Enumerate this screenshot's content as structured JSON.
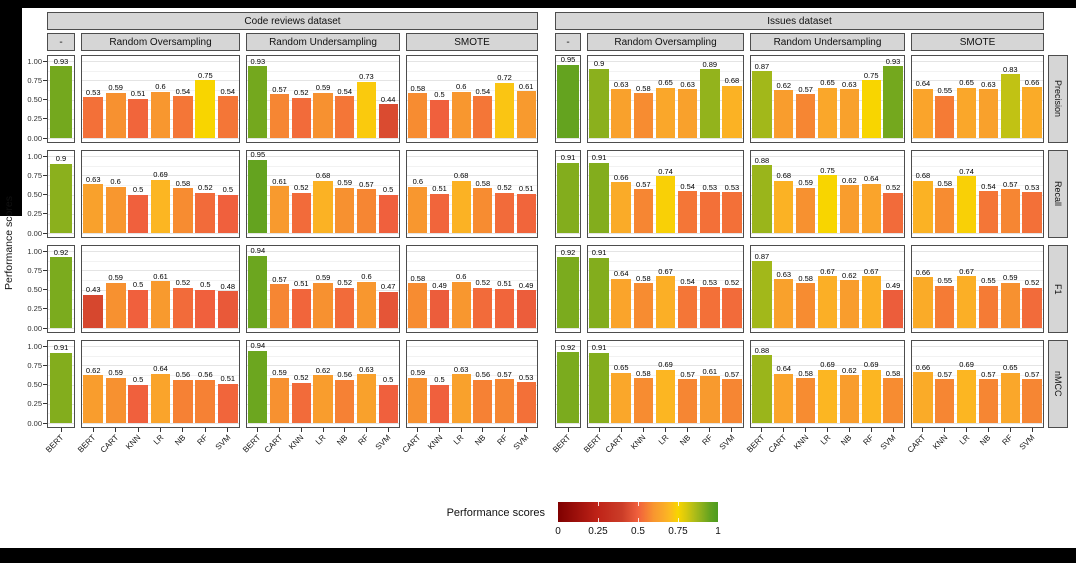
{
  "axes": {
    "y_label": "Performance scores",
    "y_ticks": [
      "1.00",
      "0.75",
      "0.50",
      "0.25",
      "0.00"
    ]
  },
  "legend": {
    "title": "Performance scores",
    "tick_labels": [
      "0",
      "0.25",
      "0.5",
      "0.75",
      "1"
    ]
  },
  "chart_data": {
    "type": "bar",
    "title": "",
    "ylabel": "Performance scores",
    "ylim": [
      0,
      1
    ],
    "y_tick_values": [
      0,
      0.25,
      0.5,
      0.75,
      1
    ],
    "grid": "on",
    "legend_position": "bottom",
    "metrics": [
      "Precision",
      "Recall",
      "F1",
      "nMCC"
    ],
    "color_scale": {
      "stops": [
        [
          0.0,
          "#7f0000"
        ],
        [
          0.25,
          "#bf2318"
        ],
        [
          0.4,
          "#cb3d28"
        ],
        [
          0.5,
          "#f0603d"
        ],
        [
          0.55,
          "#f57b35"
        ],
        [
          0.6,
          "#f8972f"
        ],
        [
          0.65,
          "#faa72a"
        ],
        [
          0.7,
          "#fcba20"
        ],
        [
          0.75,
          "#f8d500"
        ],
        [
          0.8,
          "#d8c90d"
        ],
        [
          0.85,
          "#b1bd18"
        ],
        [
          0.9,
          "#8bb01d"
        ],
        [
          0.95,
          "#64a31f"
        ],
        [
          1.0,
          "#4c9c1f"
        ]
      ]
    },
    "datasets": [
      {
        "name": "Code reviews dataset",
        "strategies": [
          {
            "name": "-",
            "models": [
              "BERT"
            ],
            "values": {
              "Precision": [
                0.93
              ],
              "Recall": [
                0.9
              ],
              "F1": [
                0.92
              ],
              "nMCC": [
                0.91
              ]
            }
          },
          {
            "name": "Random Oversampling",
            "models": [
              "BERT",
              "CART",
              "KNN",
              "LR",
              "NB",
              "RF",
              "SVM"
            ],
            "values": {
              "Precision": [
                0.53,
                0.59,
                0.51,
                0.6,
                0.54,
                0.75,
                0.54
              ],
              "Recall": [
                0.63,
                0.6,
                0.5,
                0.69,
                0.58,
                0.52,
                0.5
              ],
              "F1": [
                0.43,
                0.59,
                0.5,
                0.61,
                0.52,
                0.5,
                0.48
              ],
              "nMCC": [
                0.62,
                0.59,
                0.5,
                0.64,
                0.56,
                0.56,
                0.51
              ]
            }
          },
          {
            "name": "Random Undersampling",
            "models": [
              "BERT",
              "CART",
              "KNN",
              "LR",
              "NB",
              "RF",
              "SVM"
            ],
            "values": {
              "Precision": [
                0.93,
                0.57,
                0.52,
                0.59,
                0.54,
                0.73,
                0.44
              ],
              "Recall": [
                0.95,
                0.61,
                0.52,
                0.68,
                0.59,
                0.57,
                0.5
              ],
              "F1": [
                0.94,
                0.57,
                0.51,
                0.59,
                0.52,
                0.6,
                0.47
              ],
              "nMCC": [
                0.94,
                0.59,
                0.52,
                0.62,
                0.56,
                0.63,
                0.5
              ]
            }
          },
          {
            "name": "SMOTE",
            "models": [
              "CART",
              "KNN",
              "LR",
              "NB",
              "RF",
              "SVM"
            ],
            "values": {
              "Precision": [
                0.58,
                0.5,
                0.6,
                0.54,
                0.72,
                0.61
              ],
              "Recall": [
                0.6,
                0.51,
                0.68,
                0.58,
                0.52,
                0.51
              ],
              "F1": [
                0.58,
                0.49,
                0.6,
                0.52,
                0.51,
                0.49
              ],
              "nMCC": [
                0.59,
                0.5,
                0.63,
                0.56,
                0.57,
                0.53
              ]
            }
          }
        ]
      },
      {
        "name": "Issues dataset",
        "strategies": [
          {
            "name": "-",
            "models": [
              "BERT"
            ],
            "values": {
              "Precision": [
                0.95
              ],
              "Recall": [
                0.91
              ],
              "F1": [
                0.92
              ],
              "nMCC": [
                0.92
              ]
            }
          },
          {
            "name": "Random Oversampling",
            "models": [
              "BERT",
              "CART",
              "KNN",
              "LR",
              "NB",
              "RF",
              "SVM"
            ],
            "values": {
              "Precision": [
                0.9,
                0.63,
                0.58,
                0.65,
                0.63,
                0.89,
                0.68
              ],
              "Recall": [
                0.91,
                0.66,
                0.57,
                0.74,
                0.54,
                0.53,
                0.53
              ],
              "F1": [
                0.91,
                0.64,
                0.58,
                0.67,
                0.54,
                0.53,
                0.52
              ],
              "nMCC": [
                0.91,
                0.65,
                0.58,
                0.69,
                0.57,
                0.61,
                0.57
              ]
            }
          },
          {
            "name": "Random Undersampling",
            "models": [
              "BERT",
              "CART",
              "KNN",
              "LR",
              "NB",
              "RF",
              "SVM"
            ],
            "values": {
              "Precision": [
                0.87,
                0.62,
                0.57,
                0.65,
                0.63,
                0.75,
                0.93
              ],
              "Recall": [
                0.88,
                0.68,
                0.59,
                0.75,
                0.62,
                0.64,
                0.52
              ],
              "F1": [
                0.87,
                0.63,
                0.58,
                0.67,
                0.62,
                0.67,
                0.49
              ],
              "nMCC": [
                0.88,
                0.64,
                0.58,
                0.69,
                0.62,
                0.69,
                0.58
              ]
            }
          },
          {
            "name": "SMOTE",
            "models": [
              "CART",
              "KNN",
              "LR",
              "NB",
              "RF",
              "SVM"
            ],
            "values": {
              "Precision": [
                0.64,
                0.55,
                0.65,
                0.63,
                0.83,
                0.66
              ],
              "Recall": [
                0.68,
                0.58,
                0.74,
                0.54,
                0.57,
                0.53
              ],
              "F1": [
                0.66,
                0.55,
                0.67,
                0.55,
                0.59,
                0.52
              ],
              "nMCC": [
                0.66,
                0.57,
                0.69,
                0.57,
                0.65,
                0.57
              ]
            }
          }
        ]
      }
    ]
  }
}
